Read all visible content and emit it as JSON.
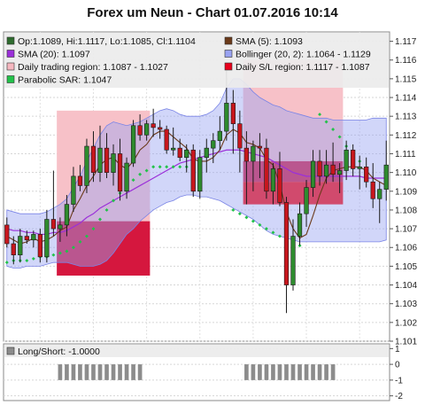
{
  "chart_data": {
    "type": "candlestick",
    "title": "Forex um Neun - Chart 01.07.2016 10:14",
    "legend": [
      {
        "text": "Op:1.1089, Hi:1.1117, Lo:1.1085, Cl:1.1104",
        "color": "#2e6b2e",
        "shape": "candle"
      },
      {
        "text": "SMA (5): 1.1093",
        "color": "#6b3a1a",
        "shape": "square"
      },
      {
        "text": "SMA (20): 1.1097",
        "color": "#9b30d9",
        "shape": "square"
      },
      {
        "text": "Bollinger (20, 2): 1.1064 - 1.1129",
        "color": "#9aa3f2",
        "shape": "square"
      },
      {
        "text": "Daily trading region: 1.1087 - 1.1027",
        "color": "#f6b8c0",
        "shape": "square"
      },
      {
        "text": "Daily S/L region: 1.1117 - 1.1087",
        "color": "#e8001c",
        "shape": "square"
      },
      {
        "text": "Parabolic SAR: 1.1047",
        "color": "#22c24a",
        "shape": "square"
      }
    ],
    "y_axis": {
      "range": [
        1.101,
        1.1175
      ],
      "ticks": [
        "1.101",
        "1.102",
        "1.103",
        "1.104",
        "1.105",
        "1.106",
        "1.107",
        "1.108",
        "1.109",
        "1.110",
        "1.111",
        "1.112",
        "1.113",
        "1.114",
        "1.115",
        "1.116",
        "1.117"
      ]
    },
    "ohlc": [
      [
        1.1072,
        1.1076,
        1.106,
        1.1062
      ],
      [
        1.1062,
        1.1066,
        1.1051,
        1.1056
      ],
      [
        1.1056,
        1.107,
        1.1052,
        1.1066
      ],
      [
        1.1066,
        1.1069,
        1.1062,
        1.1064
      ],
      [
        1.1064,
        1.1069,
        1.106,
        1.1067
      ],
      [
        1.1067,
        1.107,
        1.1052,
        1.1055
      ],
      [
        1.1055,
        1.108,
        1.1052,
        1.1075
      ],
      [
        1.1075,
        1.1101,
        1.1066,
        1.107
      ],
      [
        1.107,
        1.1076,
        1.1063,
        1.1072
      ],
      [
        1.1072,
        1.1088,
        1.1066,
        1.1083
      ],
      [
        1.1083,
        1.1103,
        1.1079,
        1.1098
      ],
      [
        1.1098,
        1.1104,
        1.109,
        1.1093
      ],
      [
        1.1093,
        1.1118,
        1.1089,
        1.1114
      ],
      [
        1.1114,
        1.1122,
        1.1095,
        1.11
      ],
      [
        1.11,
        1.1125,
        1.1095,
        1.1113
      ],
      [
        1.1113,
        1.1121,
        1.1097,
        1.11
      ],
      [
        1.11,
        1.1115,
        1.1093,
        1.111
      ],
      [
        1.111,
        1.1118,
        1.1085,
        1.109
      ],
      [
        1.109,
        1.1108,
        1.1086,
        1.1105
      ],
      [
        1.1105,
        1.1128,
        1.1103,
        1.1125
      ],
      [
        1.1125,
        1.1131,
        1.1117,
        1.112
      ],
      [
        1.112,
        1.1128,
        1.1117,
        1.1126
      ],
      [
        1.1126,
        1.1134,
        1.1119,
        1.1124
      ],
      [
        1.1124,
        1.1128,
        1.1118,
        1.1123
      ],
      [
        1.1123,
        1.1125,
        1.111,
        1.1112
      ],
      [
        1.1112,
        1.1124,
        1.1109,
        1.1113
      ],
      [
        1.1113,
        1.1118,
        1.1106,
        1.1108
      ],
      [
        1.1108,
        1.1115,
        1.11,
        1.1112
      ],
      [
        1.1112,
        1.1115,
        1.1087,
        1.109
      ],
      [
        1.109,
        1.1112,
        1.1086,
        1.1108
      ],
      [
        1.1108,
        1.1118,
        1.11,
        1.1113
      ],
      [
        1.1113,
        1.1121,
        1.1105,
        1.1117
      ],
      [
        1.1117,
        1.113,
        1.1112,
        1.1122
      ],
      [
        1.1122,
        1.1155,
        1.1117,
        1.1137
      ],
      [
        1.1137,
        1.1144,
        1.111,
        1.1126
      ],
      [
        1.1126,
        1.1133,
        1.11,
        1.1113
      ],
      [
        1.1113,
        1.1122,
        1.1083,
        1.1106
      ],
      [
        1.1106,
        1.1117,
        1.109,
        1.1114
      ],
      [
        1.1114,
        1.1121,
        1.1097,
        1.1113
      ],
      [
        1.1113,
        1.1118,
        1.1086,
        1.109
      ],
      [
        1.109,
        1.1105,
        1.1083,
        1.1102
      ],
      [
        1.1102,
        1.1111,
        1.1082,
        1.1084
      ],
      [
        1.1084,
        1.1087,
        1.1025,
        1.104
      ],
      [
        1.104,
        1.1075,
        1.1037,
        1.1066
      ],
      [
        1.1066,
        1.1084,
        1.1061,
        1.1078
      ],
      [
        1.1078,
        1.1096,
        1.1071,
        1.1092
      ],
      [
        1.1092,
        1.1112,
        1.1087,
        1.1106
      ],
      [
        1.1106,
        1.1112,
        1.1093,
        1.1098
      ],
      [
        1.1098,
        1.1112,
        1.1094,
        1.1104
      ],
      [
        1.1104,
        1.1116,
        1.1095,
        1.1099
      ],
      [
        1.1099,
        1.1105,
        1.1089,
        1.1101
      ],
      [
        1.1101,
        1.1117,
        1.1096,
        1.1112
      ],
      [
        1.1112,
        1.1115,
        1.1098,
        1.1102
      ],
      [
        1.1102,
        1.1109,
        1.1091,
        1.1103
      ],
      [
        1.1103,
        1.1108,
        1.1092,
        1.1095
      ],
      [
        1.1095,
        1.1105,
        1.1081,
        1.1086
      ],
      [
        1.1086,
        1.1095,
        1.1073,
        1.1091
      ],
      [
        1.1091,
        1.1117,
        1.1085,
        1.1104
      ]
    ],
    "sma5": [
      1.1066,
      1.1064,
      1.1062,
      1.1063,
      1.1065,
      1.1063,
      1.1064,
      1.1066,
      1.1069,
      1.1071,
      1.108,
      1.1086,
      1.1093,
      1.1098,
      1.1104,
      1.1107,
      1.1108,
      1.1104,
      1.1102,
      1.1106,
      1.1112,
      1.1115,
      1.112,
      1.1122,
      1.1122,
      1.1119,
      1.1116,
      1.1113,
      1.1107,
      1.1106,
      1.1106,
      1.1108,
      1.1112,
      1.112,
      1.1123,
      1.1121,
      1.1116,
      1.1115,
      1.1113,
      1.1107,
      1.1104,
      1.1094,
      1.1079,
      1.107,
      1.1065,
      1.1067,
      1.1077,
      1.1088,
      1.1097,
      1.1101,
      1.1102,
      1.1103,
      1.1103,
      1.1103,
      1.1101,
      1.1097,
      1.1095,
      1.1093
    ],
    "sma20": [
      1.107,
      1.1069,
      1.1069,
      1.1068,
      1.1068,
      1.1067,
      1.1067,
      1.1068,
      1.1068,
      1.1069,
      1.1071,
      1.1073,
      1.1076,
      1.1078,
      1.1081,
      1.1083,
      1.1085,
      1.1087,
      1.1089,
      1.1091,
      1.1093,
      1.1095,
      1.1097,
      1.1099,
      1.1101,
      1.1103,
      1.1105,
      1.1106,
      1.1107,
      1.1108,
      1.1109,
      1.111,
      1.1111,
      1.1112,
      1.1112,
      1.1112,
      1.1111,
      1.111,
      1.1109,
      1.1108,
      1.1106,
      1.1104,
      1.1102,
      1.11,
      1.1099,
      1.1098,
      1.1098,
      1.1098,
      1.1098,
      1.1098,
      1.1098,
      1.1098,
      1.1098,
      1.1098,
      1.1097,
      1.1097,
      1.1097,
      1.1097
    ],
    "boll_upper": [
      1.108,
      1.1079,
      1.1078,
      1.1078,
      1.1078,
      1.1078,
      1.1079,
      1.1081,
      1.1083,
      1.1086,
      1.1092,
      1.1098,
      1.1106,
      1.1113,
      1.112,
      1.1125,
      1.1127,
      1.1126,
      1.1125,
      1.1126,
      1.1127,
      1.1129,
      1.1131,
      1.1133,
      1.1134,
      1.1133,
      1.1131,
      1.113,
      1.113,
      1.113,
      1.1131,
      1.1133,
      1.1137,
      1.1145,
      1.115,
      1.115,
      1.1147,
      1.1143,
      1.114,
      1.1138,
      1.1136,
      1.1135,
      1.1133,
      1.1132,
      1.1131,
      1.113,
      1.1129,
      1.1129,
      1.1129,
      1.1128,
      1.1128,
      1.1128,
      1.1128,
      1.1128,
      1.1128,
      1.1129,
      1.1129,
      1.1129
    ],
    "boll_lower": [
      1.105,
      1.1049,
      1.1049,
      1.105,
      1.105,
      1.105,
      1.1051,
      1.1052,
      1.1052,
      1.1052,
      1.1051,
      1.105,
      1.105,
      1.105,
      1.1051,
      1.1053,
      1.1057,
      1.1062,
      1.1067,
      1.107,
      1.1074,
      1.1077,
      1.108,
      1.1082,
      1.1084,
      1.1085,
      1.1087,
      1.1088,
      1.1088,
      1.1087,
      1.1087,
      1.1086,
      1.1085,
      1.1083,
      1.1081,
      1.1079,
      1.1077,
      1.1075,
      1.1072,
      1.1069,
      1.1067,
      1.1066,
      1.1065,
      1.1064,
      1.1063,
      1.1063,
      1.1063,
      1.1063,
      1.1063,
      1.1063,
      1.1063,
      1.1063,
      1.1063,
      1.1063,
      1.1063,
      1.1063,
      1.1063,
      1.1064
    ],
    "sar": [
      1.1052,
      1.1053,
      1.1053,
      1.1053,
      1.1054,
      1.1055,
      1.1055,
      1.1056,
      1.1057,
      1.1058,
      1.106,
      1.1063,
      1.1066,
      1.107,
      1.1075,
      1.108,
      1.1085,
      1.1089,
      1.1093,
      1.1096,
      1.1099,
      1.1101,
      1.1103,
      1.1103,
      1.1103,
      1.1103,
      1.1103,
      1.1103,
      null,
      null,
      null,
      null,
      null,
      null,
      1.108,
      1.1078,
      1.1076,
      1.1074,
      1.1072,
      1.107,
      1.1068,
      1.1066,
      1.1064,
      1.1062,
      1.1061,
      null,
      null,
      1.1131,
      1.1127,
      1.1123,
      1.1119,
      1.1114,
      1.111,
      1.1106,
      null,
      null,
      null,
      null
    ],
    "regions": [
      {
        "name": "Daily trading region",
        "color": "#f7c1c8",
        "start": 8,
        "end": 21,
        "lo": 1.1074,
        "hi": 1.1133
      },
      {
        "name": "Daily S/L region",
        "color": "#d5173e",
        "start": 8,
        "end": 21,
        "lo": 1.1045,
        "hi": 1.1074
      },
      {
        "name": "Daily trading region",
        "color": "#f7c1c8",
        "start": 36,
        "end": 50,
        "lo": 1.1083,
        "hi": 1.116
      },
      {
        "name": "Daily S/L region",
        "color": "#d5173e",
        "start": 36,
        "end": 50,
        "lo": 1.1095,
        "hi": 1.1106
      },
      {
        "name": "Daily S/L region",
        "color": "#ff0000",
        "start": 36,
        "end": 50,
        "lo": 1.1083,
        "hi": 1.1095
      }
    ],
    "sub_panel": {
      "label": "Long/Short: -1.0000",
      "y_ticks": [
        "1",
        "0",
        "-1",
        "-2"
      ],
      "y_range": [
        -2.3,
        1.3
      ],
      "position_bars": [
        8,
        9,
        10,
        11,
        12,
        13,
        14,
        15,
        16,
        17,
        18,
        19,
        20,
        36,
        37,
        38,
        39,
        40,
        41,
        42,
        43,
        44,
        45,
        46,
        47,
        48,
        49
      ]
    }
  }
}
